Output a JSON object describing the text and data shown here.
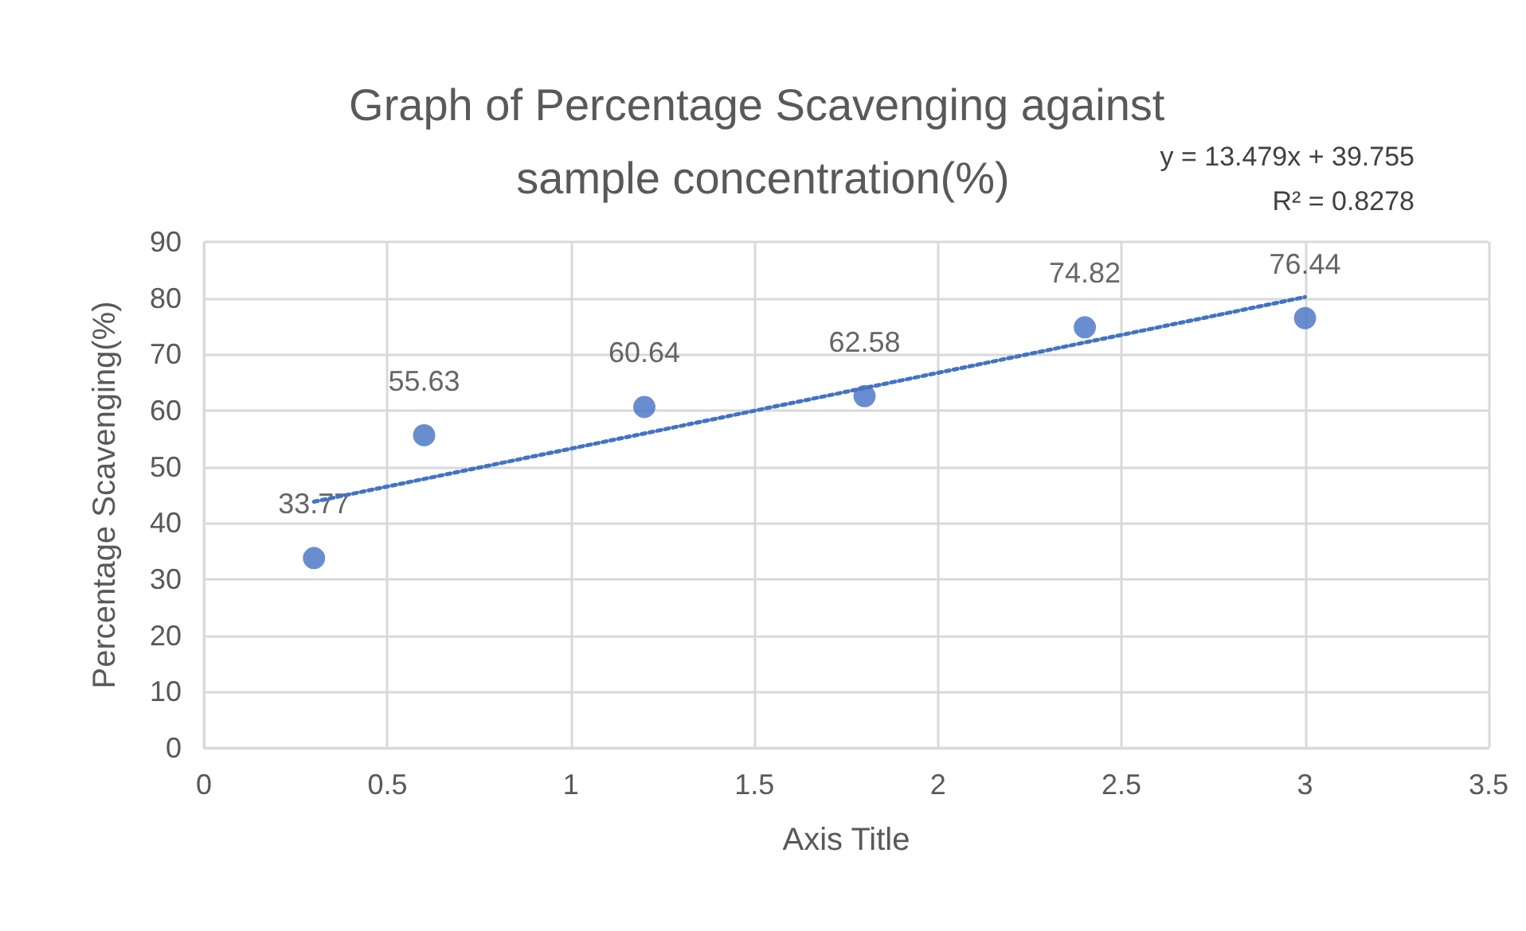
{
  "chart_data": {
    "type": "scatter",
    "title": "Graph of Percentage Scavenging against sample concentration(%)",
    "xlabel": "Axis Title",
    "ylabel": "Percentage Scavenging(%)",
    "x": [
      0.3,
      0.6,
      1.2,
      1.8,
      2.4,
      3.0
    ],
    "series": [
      {
        "color": "#4472c4",
        "values": [
          33.77,
          55.63,
          60.64,
          62.58,
          74.82,
          76.44
        ],
        "value_labels": [
          "33.77",
          "55.63",
          "60.64",
          "62.58",
          "74.82",
          "76.44"
        ]
      },
      {
        "type": "line",
        "color": "#4472c4",
        "x": [
          0.3,
          3.0
        ],
        "values": [
          43.8,
          80.2
        ],
        "line_style": "dotted",
        "marker": "none"
      }
    ],
    "annotations": [
      "y = 13.479x + 39.755",
      "R² = 0.8278"
    ],
    "xlim": [
      0,
      3.5
    ],
    "xticks": [
      0,
      0.5,
      1,
      1.5,
      2,
      2.5,
      3,
      3.5
    ],
    "ylim": [
      0,
      90
    ],
    "yticks": [
      0,
      10,
      20,
      30,
      40,
      50,
      60,
      70,
      80,
      90
    ],
    "grid": true,
    "marker": "circle"
  }
}
